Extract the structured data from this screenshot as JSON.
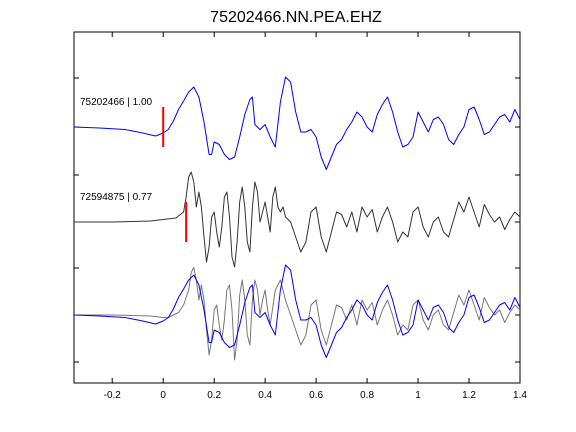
{
  "chart_data": {
    "type": "line",
    "title": "75202466.NN.PEA.EHZ",
    "xlabel": "",
    "ylabel": "",
    "xlim": [
      -0.35,
      1.4
    ],
    "x_ticks": [
      -0.2,
      0,
      0.2,
      0.4,
      0.6,
      0.8,
      1,
      1.2,
      1.4
    ],
    "x_tick_labels": [
      "-0.2",
      "0",
      "0.2",
      "0.4",
      "0.6",
      "0.8",
      "1",
      "1.2",
      "1.4"
    ],
    "y_ticks_visible": true,
    "grid": false,
    "colors": {
      "master": "#0000ff",
      "aligned": "#333333",
      "overlay_gray": "#777777",
      "pick": "#ff0000"
    },
    "panels": [
      {
        "label": "75202466 | 1.00",
        "pick_time": 0.0
      },
      {
        "label": "72594875 | 0.77",
        "pick_time": 0.09
      },
      {
        "label": "",
        "pick_time": null
      }
    ],
    "series": [
      {
        "panel": 0,
        "color": "#0000ff",
        "x": [
          -0.35,
          -0.25,
          -0.15,
          -0.08,
          -0.03,
          0.0,
          0.02,
          0.04,
          0.06,
          0.08,
          0.1,
          0.12,
          0.14,
          0.16,
          0.18,
          0.19,
          0.2,
          0.22,
          0.24,
          0.26,
          0.28,
          0.3,
          0.32,
          0.34,
          0.35,
          0.36,
          0.38,
          0.4,
          0.42,
          0.44,
          0.46,
          0.48,
          0.5,
          0.52,
          0.54,
          0.56,
          0.58,
          0.6,
          0.62,
          0.64,
          0.66,
          0.68,
          0.7,
          0.72,
          0.74,
          0.76,
          0.78,
          0.8,
          0.82,
          0.84,
          0.86,
          0.88,
          0.9,
          0.92,
          0.94,
          0.96,
          0.98,
          1.0,
          1.02,
          1.04,
          1.06,
          1.08,
          1.1,
          1.12,
          1.14,
          1.16,
          1.18,
          1.2,
          1.22,
          1.24,
          1.26,
          1.28,
          1.3,
          1.32,
          1.34,
          1.36,
          1.38,
          1.4
        ],
        "y": [
          0.0,
          -0.02,
          -0.05,
          -0.12,
          -0.18,
          -0.12,
          -0.05,
          0.12,
          0.35,
          0.52,
          0.7,
          0.8,
          0.6,
          0.1,
          -0.55,
          -0.55,
          -0.3,
          -0.35,
          -0.55,
          -0.65,
          -0.6,
          -0.2,
          0.25,
          0.55,
          0.6,
          0.05,
          -0.05,
          0.05,
          -0.2,
          -0.4,
          0.5,
          1.0,
          0.9,
          0.3,
          -0.1,
          -0.1,
          -0.05,
          -0.2,
          -0.6,
          -0.85,
          -0.6,
          -0.35,
          -0.25,
          -0.05,
          0.1,
          0.3,
          0.2,
          0.0,
          -0.1,
          0.25,
          0.45,
          0.6,
          0.3,
          -0.1,
          -0.4,
          -0.35,
          -0.2,
          0.3,
          0.1,
          -0.1,
          0.15,
          0.2,
          0.05,
          -0.25,
          -0.35,
          -0.15,
          0.0,
          0.35,
          0.4,
          0.15,
          -0.15,
          -0.1,
          0.05,
          0.2,
          0.25,
          0.1,
          0.35,
          0.15
        ]
      },
      {
        "panel": 1,
        "color": "#333333",
        "x": [
          -0.35,
          -0.2,
          -0.05,
          0.05,
          0.08,
          0.09,
          0.1,
          0.11,
          0.12,
          0.13,
          0.14,
          0.15,
          0.16,
          0.17,
          0.18,
          0.19,
          0.2,
          0.21,
          0.22,
          0.23,
          0.24,
          0.25,
          0.26,
          0.27,
          0.28,
          0.29,
          0.3,
          0.31,
          0.32,
          0.33,
          0.34,
          0.35,
          0.36,
          0.37,
          0.38,
          0.39,
          0.4,
          0.41,
          0.42,
          0.43,
          0.44,
          0.45,
          0.46,
          0.47,
          0.48,
          0.5,
          0.52,
          0.54,
          0.56,
          0.58,
          0.6,
          0.62,
          0.64,
          0.66,
          0.68,
          0.7,
          0.72,
          0.74,
          0.76,
          0.78,
          0.8,
          0.82,
          0.84,
          0.86,
          0.88,
          0.9,
          0.92,
          0.94,
          0.96,
          0.98,
          1.0,
          1.02,
          1.04,
          1.06,
          1.08,
          1.1,
          1.12,
          1.14,
          1.16,
          1.18,
          1.2,
          1.22,
          1.24,
          1.26,
          1.28,
          1.3,
          1.32,
          1.34,
          1.36,
          1.38,
          1.4
        ],
        "y": [
          0.0,
          0.0,
          0.02,
          0.08,
          0.2,
          0.5,
          0.9,
          1.0,
          0.8,
          0.3,
          0.6,
          0.3,
          -0.3,
          -0.8,
          -0.5,
          0.1,
          0.2,
          -0.2,
          -0.5,
          -0.1,
          0.5,
          0.6,
          0.1,
          -0.7,
          -0.9,
          -0.4,
          0.4,
          0.7,
          0.3,
          -0.4,
          -0.6,
          0.3,
          0.8,
          0.6,
          0.0,
          0.2,
          0.4,
          0.1,
          -0.2,
          0.5,
          0.7,
          0.3,
          0.2,
          0.3,
          0.1,
          0.0,
          -0.3,
          -0.6,
          -0.4,
          0.2,
          0.3,
          -0.3,
          -0.6,
          -0.2,
          0.2,
          0.15,
          -0.1,
          0.2,
          -0.2,
          0.3,
          0.1,
          0.25,
          -0.2,
          0.1,
          0.3,
          0.0,
          -0.4,
          -0.2,
          -0.3,
          0.2,
          0.3,
          -0.1,
          -0.3,
          0.0,
          0.1,
          -0.2,
          -0.3,
          0.05,
          0.4,
          0.2,
          0.5,
          0.2,
          -0.1,
          0.35,
          0.15,
          0.0,
          0.1,
          -0.15,
          0.05,
          0.2,
          0.1
        ]
      },
      {
        "panel": 2,
        "color": "#0000ff",
        "x": [
          -0.35,
          -0.25,
          -0.15,
          -0.08,
          -0.03,
          0.0,
          0.02,
          0.04,
          0.06,
          0.08,
          0.1,
          0.12,
          0.14,
          0.16,
          0.18,
          0.19,
          0.2,
          0.22,
          0.24,
          0.26,
          0.28,
          0.3,
          0.32,
          0.34,
          0.35,
          0.36,
          0.38,
          0.4,
          0.42,
          0.44,
          0.46,
          0.48,
          0.5,
          0.52,
          0.54,
          0.56,
          0.58,
          0.6,
          0.62,
          0.64,
          0.66,
          0.68,
          0.7,
          0.72,
          0.74,
          0.76,
          0.78,
          0.8,
          0.82,
          0.84,
          0.86,
          0.88,
          0.9,
          0.92,
          0.94,
          0.96,
          0.98,
          1.0,
          1.02,
          1.04,
          1.06,
          1.08,
          1.1,
          1.12,
          1.14,
          1.16,
          1.18,
          1.2,
          1.22,
          1.24,
          1.26,
          1.28,
          1.3,
          1.32,
          1.34,
          1.36,
          1.38,
          1.4
        ],
        "y": [
          0.0,
          -0.02,
          -0.05,
          -0.12,
          -0.18,
          -0.12,
          -0.05,
          0.12,
          0.35,
          0.52,
          0.7,
          0.8,
          0.6,
          0.1,
          -0.55,
          -0.55,
          -0.3,
          -0.35,
          -0.55,
          -0.65,
          -0.6,
          -0.2,
          0.25,
          0.55,
          0.6,
          0.05,
          -0.05,
          0.05,
          -0.2,
          -0.4,
          0.5,
          1.0,
          0.9,
          0.3,
          -0.1,
          -0.1,
          -0.05,
          -0.2,
          -0.6,
          -0.85,
          -0.6,
          -0.35,
          -0.25,
          -0.05,
          0.1,
          0.3,
          0.2,
          0.0,
          -0.1,
          0.25,
          0.45,
          0.6,
          0.3,
          -0.1,
          -0.4,
          -0.35,
          -0.2,
          0.3,
          0.1,
          -0.1,
          0.15,
          0.2,
          0.05,
          -0.25,
          -0.35,
          -0.15,
          0.0,
          0.35,
          0.4,
          0.15,
          -0.15,
          -0.1,
          0.05,
          0.2,
          0.25,
          0.1,
          0.35,
          0.15
        ]
      },
      {
        "panel": 2,
        "color": "#777777",
        "x": [
          -0.35,
          -0.2,
          -0.05,
          0.0,
          0.02,
          0.04,
          0.06,
          0.08,
          0.1,
          0.11,
          0.12,
          0.13,
          0.14,
          0.15,
          0.16,
          0.17,
          0.18,
          0.19,
          0.2,
          0.21,
          0.22,
          0.23,
          0.24,
          0.25,
          0.26,
          0.27,
          0.28,
          0.29,
          0.3,
          0.31,
          0.32,
          0.33,
          0.34,
          0.35,
          0.36,
          0.37,
          0.38,
          0.39,
          0.4,
          0.41,
          0.42,
          0.44,
          0.46,
          0.48,
          0.5,
          0.52,
          0.54,
          0.56,
          0.58,
          0.6,
          0.62,
          0.64,
          0.66,
          0.68,
          0.7,
          0.72,
          0.74,
          0.76,
          0.78,
          0.8,
          0.82,
          0.84,
          0.86,
          0.88,
          0.9,
          0.92,
          0.94,
          0.96,
          0.98,
          1.0,
          1.02,
          1.04,
          1.06,
          1.08,
          1.1,
          1.12,
          1.14,
          1.16,
          1.18,
          1.2,
          1.22,
          1.24,
          1.26,
          1.28,
          1.3,
          1.32,
          1.34,
          1.36,
          1.38,
          1.4
        ],
        "y": [
          0.0,
          0.0,
          -0.02,
          -0.05,
          -0.05,
          0.0,
          0.05,
          0.2,
          0.5,
          0.85,
          0.95,
          0.7,
          0.3,
          0.6,
          0.3,
          -0.3,
          -0.8,
          -0.5,
          0.1,
          0.2,
          -0.2,
          -0.5,
          -0.1,
          0.5,
          0.6,
          0.1,
          -0.9,
          -0.5,
          0.4,
          0.7,
          0.3,
          -0.4,
          -0.6,
          0.3,
          0.7,
          0.5,
          0.0,
          0.3,
          0.5,
          0.1,
          -0.2,
          0.5,
          0.7,
          0.3,
          0.0,
          -0.3,
          -0.6,
          -0.4,
          0.2,
          0.3,
          -0.3,
          -0.6,
          -0.2,
          0.2,
          0.15,
          -0.1,
          0.2,
          -0.2,
          0.3,
          0.1,
          0.25,
          -0.2,
          0.1,
          0.3,
          0.0,
          -0.4,
          -0.2,
          -0.3,
          0.2,
          0.3,
          -0.1,
          -0.3,
          0.0,
          0.1,
          -0.2,
          -0.3,
          0.05,
          0.4,
          0.2,
          0.5,
          0.2,
          -0.1,
          0.35,
          0.15,
          0.0,
          0.1,
          -0.15,
          0.05,
          0.2,
          0.1
        ]
      }
    ]
  }
}
